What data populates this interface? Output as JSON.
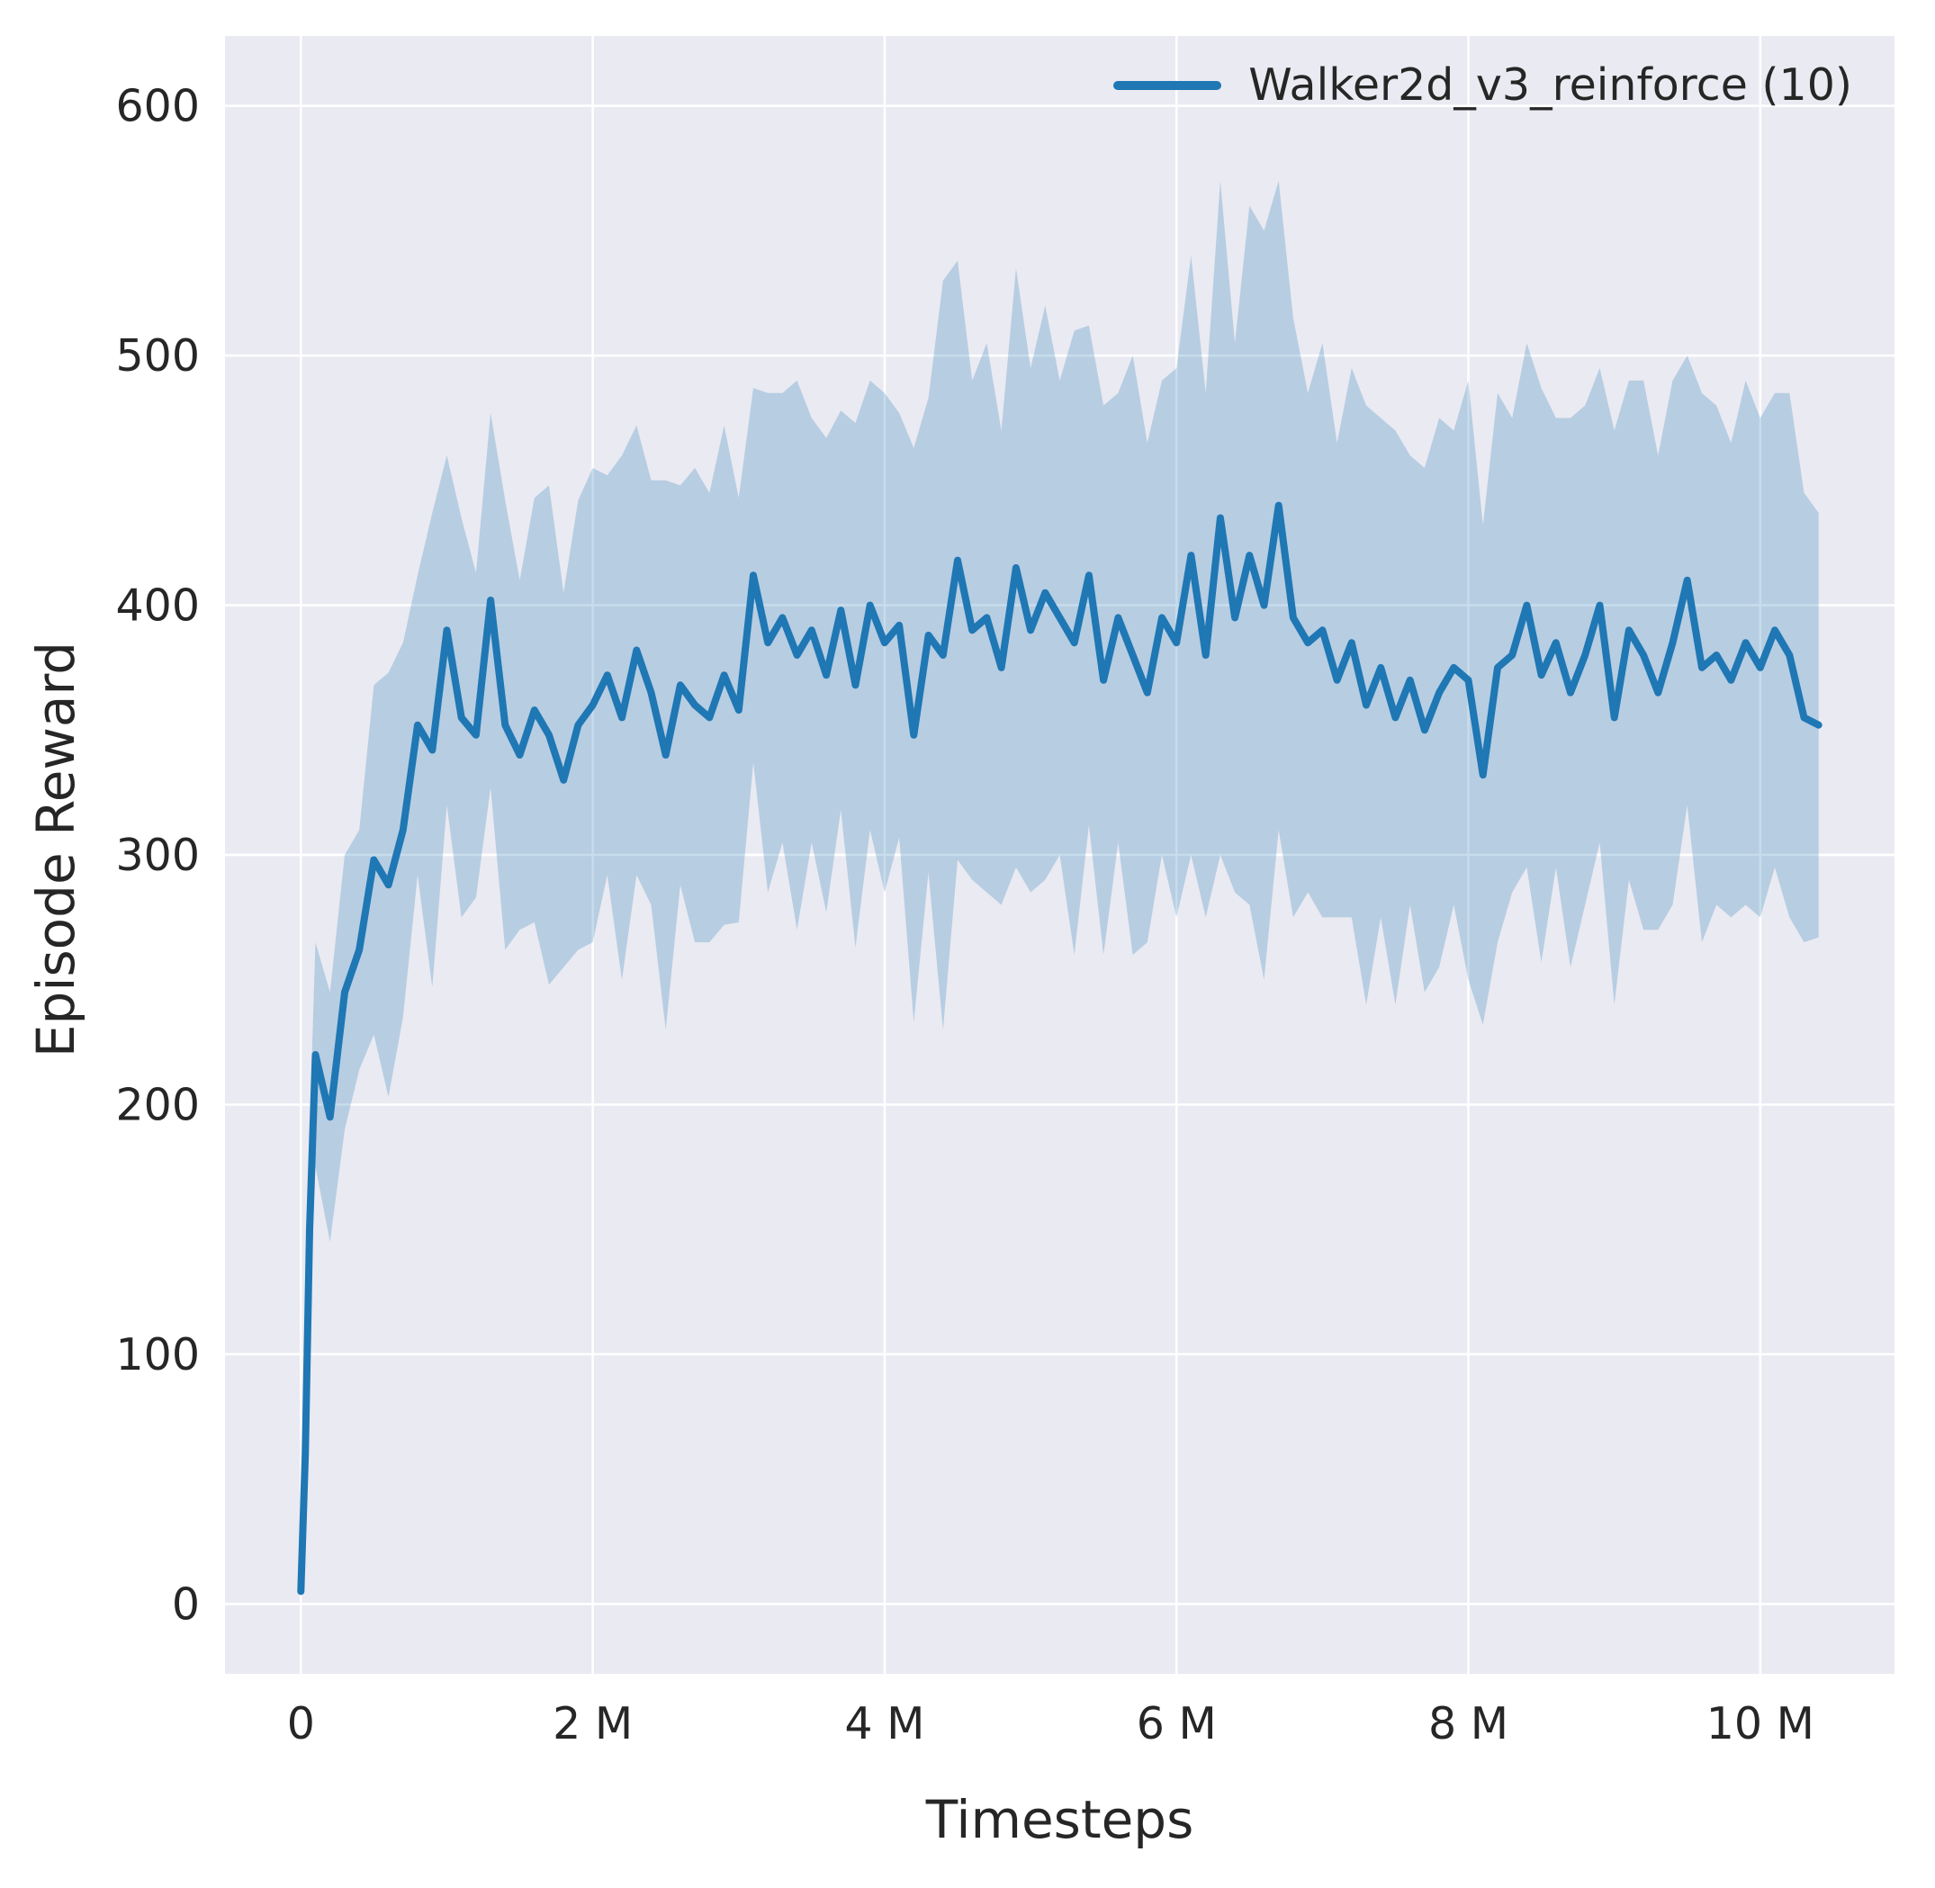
{
  "chart_data": {
    "type": "line",
    "title": "",
    "xlabel": "Timesteps",
    "ylabel": "Episode Reward",
    "legend_label": "Walker2d_v3_reinforce (10)",
    "legend_position": "upper right",
    "grid": true,
    "background": "#eaeaf2",
    "grid_color": "#ffffff",
    "text_color": "#262626",
    "x_unit": "millions of timesteps",
    "xlim": [
      -0.52,
      10.92
    ],
    "ylim": [
      -28,
      628
    ],
    "x_ticks": [
      0,
      2,
      4,
      6,
      8,
      10
    ],
    "x_tick_labels": [
      "0",
      "2 M",
      "4 M",
      "6 M",
      "8 M",
      "10 M"
    ],
    "y_ticks": [
      0,
      100,
      200,
      300,
      400,
      500,
      600
    ],
    "y_tick_labels": [
      "0",
      "100",
      "200",
      "300",
      "400",
      "500",
      "600"
    ],
    "series": [
      {
        "name": "Walker2d_v3_reinforce (10)",
        "color": "#1f77b4",
        "band_alpha": 0.25,
        "line_width": 8,
        "x": [
          0,
          0.03,
          0.06,
          0.1,
          0.2,
          0.3,
          0.4,
          0.5,
          0.6,
          0.7,
          0.8,
          0.9,
          1.0,
          1.1,
          1.2,
          1.3,
          1.4,
          1.5,
          1.6,
          1.7,
          1.8,
          1.9,
          2.0,
          2.1,
          2.2,
          2.3,
          2.4,
          2.5,
          2.6,
          2.7,
          2.8,
          2.9,
          3.0,
          3.1,
          3.2,
          3.3,
          3.4,
          3.5,
          3.6,
          3.7,
          3.8,
          3.9,
          4.0,
          4.1,
          4.2,
          4.3,
          4.4,
          4.5,
          4.6,
          4.7,
          4.8,
          4.9,
          5.0,
          5.1,
          5.2,
          5.3,
          5.4,
          5.5,
          5.6,
          5.7,
          5.8,
          5.9,
          6.0,
          6.1,
          6.2,
          6.3,
          6.4,
          6.5,
          6.6,
          6.7,
          6.8,
          6.9,
          7.0,
          7.1,
          7.2,
          7.3,
          7.4,
          7.5,
          7.6,
          7.7,
          7.8,
          7.9,
          8.0,
          8.1,
          8.2,
          8.3,
          8.4,
          8.5,
          8.6,
          8.7,
          8.8,
          8.9,
          9.0,
          9.1,
          9.2,
          9.3,
          9.4,
          9.5,
          9.6,
          9.7,
          9.8,
          9.9,
          10.0,
          10.1,
          10.2,
          10.3,
          10.4
        ],
        "mean": [
          5,
          60,
          150,
          220,
          195,
          245,
          262,
          298,
          288,
          310,
          352,
          342,
          390,
          355,
          348,
          402,
          352,
          340,
          358,
          348,
          330,
          352,
          360,
          372,
          355,
          382,
          365,
          340,
          368,
          360,
          355,
          372,
          358,
          412,
          385,
          395,
          380,
          390,
          372,
          398,
          368,
          400,
          385,
          392,
          348,
          388,
          380,
          418,
          390,
          395,
          375,
          415,
          390,
          405,
          395,
          385,
          412,
          370,
          395,
          380,
          365,
          395,
          385,
          420,
          380,
          435,
          395,
          420,
          400,
          440,
          395,
          385,
          390,
          370,
          385,
          360,
          375,
          355,
          370,
          350,
          365,
          375,
          370,
          332,
          375,
          380,
          400,
          372,
          385,
          365,
          380,
          400,
          355,
          390,
          380,
          365,
          385,
          410,
          375,
          380,
          370,
          385,
          375,
          390,
          380,
          355,
          352
        ],
        "spread": [
          2,
          20,
          40,
          45,
          50,
          55,
          48,
          70,
          85,
          75,
          60,
          95,
          70,
          80,
          65,
          75,
          90,
          70,
          85,
          100,
          75,
          90,
          95,
          80,
          105,
          90,
          85,
          110,
          80,
          95,
          90,
          100,
          85,
          75,
          100,
          90,
          110,
          85,
          95,
          80,
          105,
          90,
          100,
          85,
          115,
          95,
          150,
          120,
          100,
          110,
          95,
          120,
          105,
          115,
          95,
          125,
          100,
          110,
          90,
          120,
          100,
          95,
          110,
          120,
          105,
          135,
          110,
          140,
          150,
          130,
          120,
          100,
          115,
          95,
          110,
          120,
          100,
          115,
          90,
          105,
          110,
          95,
          120,
          100,
          110,
          95,
          105,
          115,
          90,
          110,
          100,
          95,
          115,
          100,
          110,
          95,
          105,
          90,
          110,
          100,
          95,
          105,
          100,
          95,
          105,
          90,
          85
        ]
      }
    ]
  }
}
